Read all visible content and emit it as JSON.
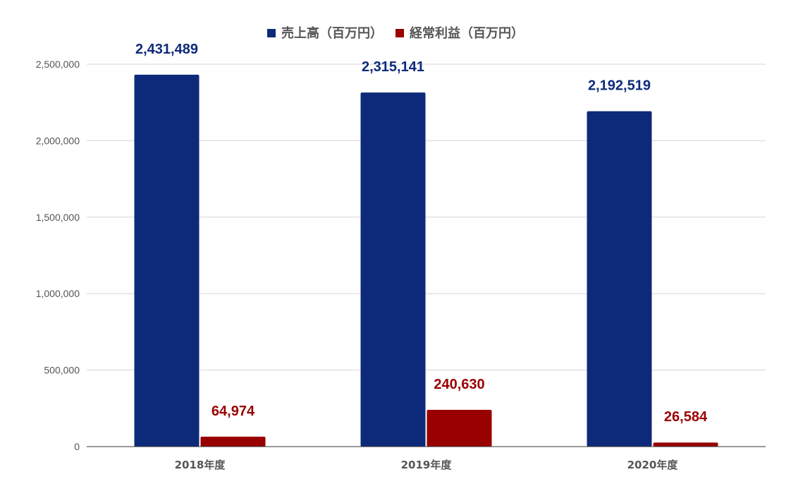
{
  "chart_data": {
    "type": "bar",
    "categories": [
      "2018年度",
      "2019年度",
      "2020年度"
    ],
    "series": [
      {
        "name": "売上高（百万円）",
        "color": "#0d2a7a",
        "values": [
          2431489,
          2315141,
          2192519
        ],
        "labels": [
          "2,431,489",
          "2,315,141",
          "2,192,519"
        ]
      },
      {
        "name": "経常利益（百万円）",
        "color": "#990000",
        "values": [
          64974,
          240630,
          26584
        ],
        "labels": [
          "64,974",
          "240,630",
          "26,584"
        ]
      }
    ],
    "ylim": [
      0,
      2500000
    ],
    "yticks": [
      0,
      500000,
      1000000,
      1500000,
      2000000,
      2500000
    ],
    "ytick_labels": [
      "0",
      "500,000",
      "1,000,000",
      "1,500,000",
      "2,000,000",
      "2,500,000"
    ],
    "grid": true,
    "legend_position": "top-center",
    "title": "",
    "xlabel": "",
    "ylabel": ""
  }
}
